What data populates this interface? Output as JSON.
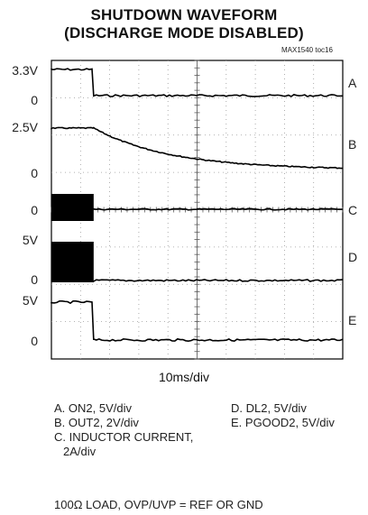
{
  "chart_data": {
    "type": "line",
    "title": "SHUTDOWN WAVEFORM",
    "subtitle": "(DISCHARGE MODE DISABLED)",
    "tag": "MAX1540  toc16",
    "xlabel": "10ms/div",
    "x_divisions": 10,
    "y_divisions": 8,
    "grid": true,
    "traces": [
      {
        "id": "A",
        "name": "ON2, 5V/div",
        "high_label": "3.3V",
        "low_label": "0",
        "shape": "step_down",
        "step_time_div": 1.45
      },
      {
        "id": "B",
        "name": "OUT2, 2V/div",
        "high_label": "2.5V",
        "low_label": "0",
        "shape": "exp_decay",
        "step_time_div": 1.45
      },
      {
        "id": "C",
        "name": "INDUCTOR CURRENT, 2A/div",
        "zero_label": "0",
        "shape": "switching_then_zero",
        "step_time_div": 1.45
      },
      {
        "id": "D",
        "name": "DL2, 5V/div",
        "high_label": "5V",
        "low_label": "0",
        "shape": "switching_then_low",
        "step_time_div": 1.45
      },
      {
        "id": "E",
        "name": "PGOOD2, 5V/div",
        "high_label": "5V",
        "low_label": "0",
        "shape": "step_down",
        "step_time_div": 1.45
      }
    ]
  },
  "legend": {
    "a": "A. ON2, 5V/div",
    "b": "B. OUT2, 2V/div",
    "c1": "C. INDUCTOR CURRENT,",
    "c2": "2A/div",
    "d": "D. DL2, 5V/div",
    "e": "E. PGOOD2, 5V/div"
  },
  "conditions": "100Ω LOAD, OVP/UVP = REF OR GND",
  "colors": {
    "trace": "#000000",
    "grid": "#9a9a9a",
    "frame": "#000000"
  }
}
